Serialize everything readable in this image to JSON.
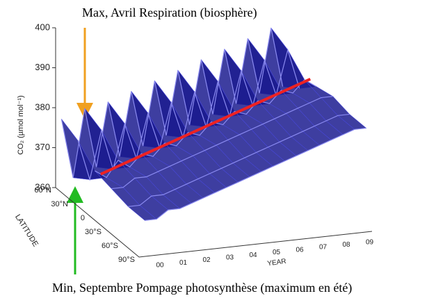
{
  "chart_data": {
    "type": "surface",
    "title": "Max, Avril Respiration (biosphère)",
    "subtitle": "Min, Septembre Pompage photosynthèse (maximum en été)",
    "zlabel": "CO₂ (µmol mol⁻¹)",
    "xlabel": "YEAR",
    "ylabel": "LATITUDE",
    "zlim": [
      360,
      400
    ],
    "zticks": [
      360,
      370,
      380,
      390,
      400
    ],
    "x": [
      "00",
      "01",
      "02",
      "03",
      "04",
      "05",
      "06",
      "07",
      "08",
      "09"
    ],
    "latitudes": [
      "60°N",
      "30°N",
      "0",
      "30°S",
      "60°S",
      "90°S"
    ],
    "surface_color": "#1c1c8f",
    "trend_color": "#ee2222",
    "surface": [
      [
        377,
        362,
        379,
        364,
        380,
        366,
        382,
        368,
        384,
        370,
        386,
        372,
        388,
        374,
        390,
        376,
        392,
        378,
        394,
        379
      ],
      [
        375,
        365,
        377,
        367,
        378,
        369,
        380,
        371,
        382,
        373,
        384,
        375,
        386,
        377,
        388,
        379,
        390,
        381,
        392,
        382
      ],
      [
        371,
        369,
        373,
        371,
        374,
        373,
        376,
        375,
        378,
        377,
        380,
        379,
        382,
        381,
        384,
        383,
        386,
        385,
        388,
        386
      ],
      [
        370,
        370,
        372,
        372,
        373,
        374,
        375,
        376,
        377,
        378,
        379,
        380,
        381,
        382,
        383,
        384,
        385,
        386,
        387,
        387
      ],
      [
        369,
        369,
        371,
        371,
        372,
        373,
        374,
        375,
        376,
        377,
        378,
        379,
        380,
        381,
        382,
        383,
        384,
        385,
        386,
        386
      ],
      [
        369,
        369,
        371,
        371,
        372,
        373,
        374,
        375,
        376,
        377,
        378,
        379,
        380,
        381,
        382,
        383,
        384,
        385,
        386,
        386
      ]
    ],
    "trend": [
      370,
      372,
      374,
      376,
      378,
      380,
      382,
      384,
      386,
      388
    ]
  }
}
